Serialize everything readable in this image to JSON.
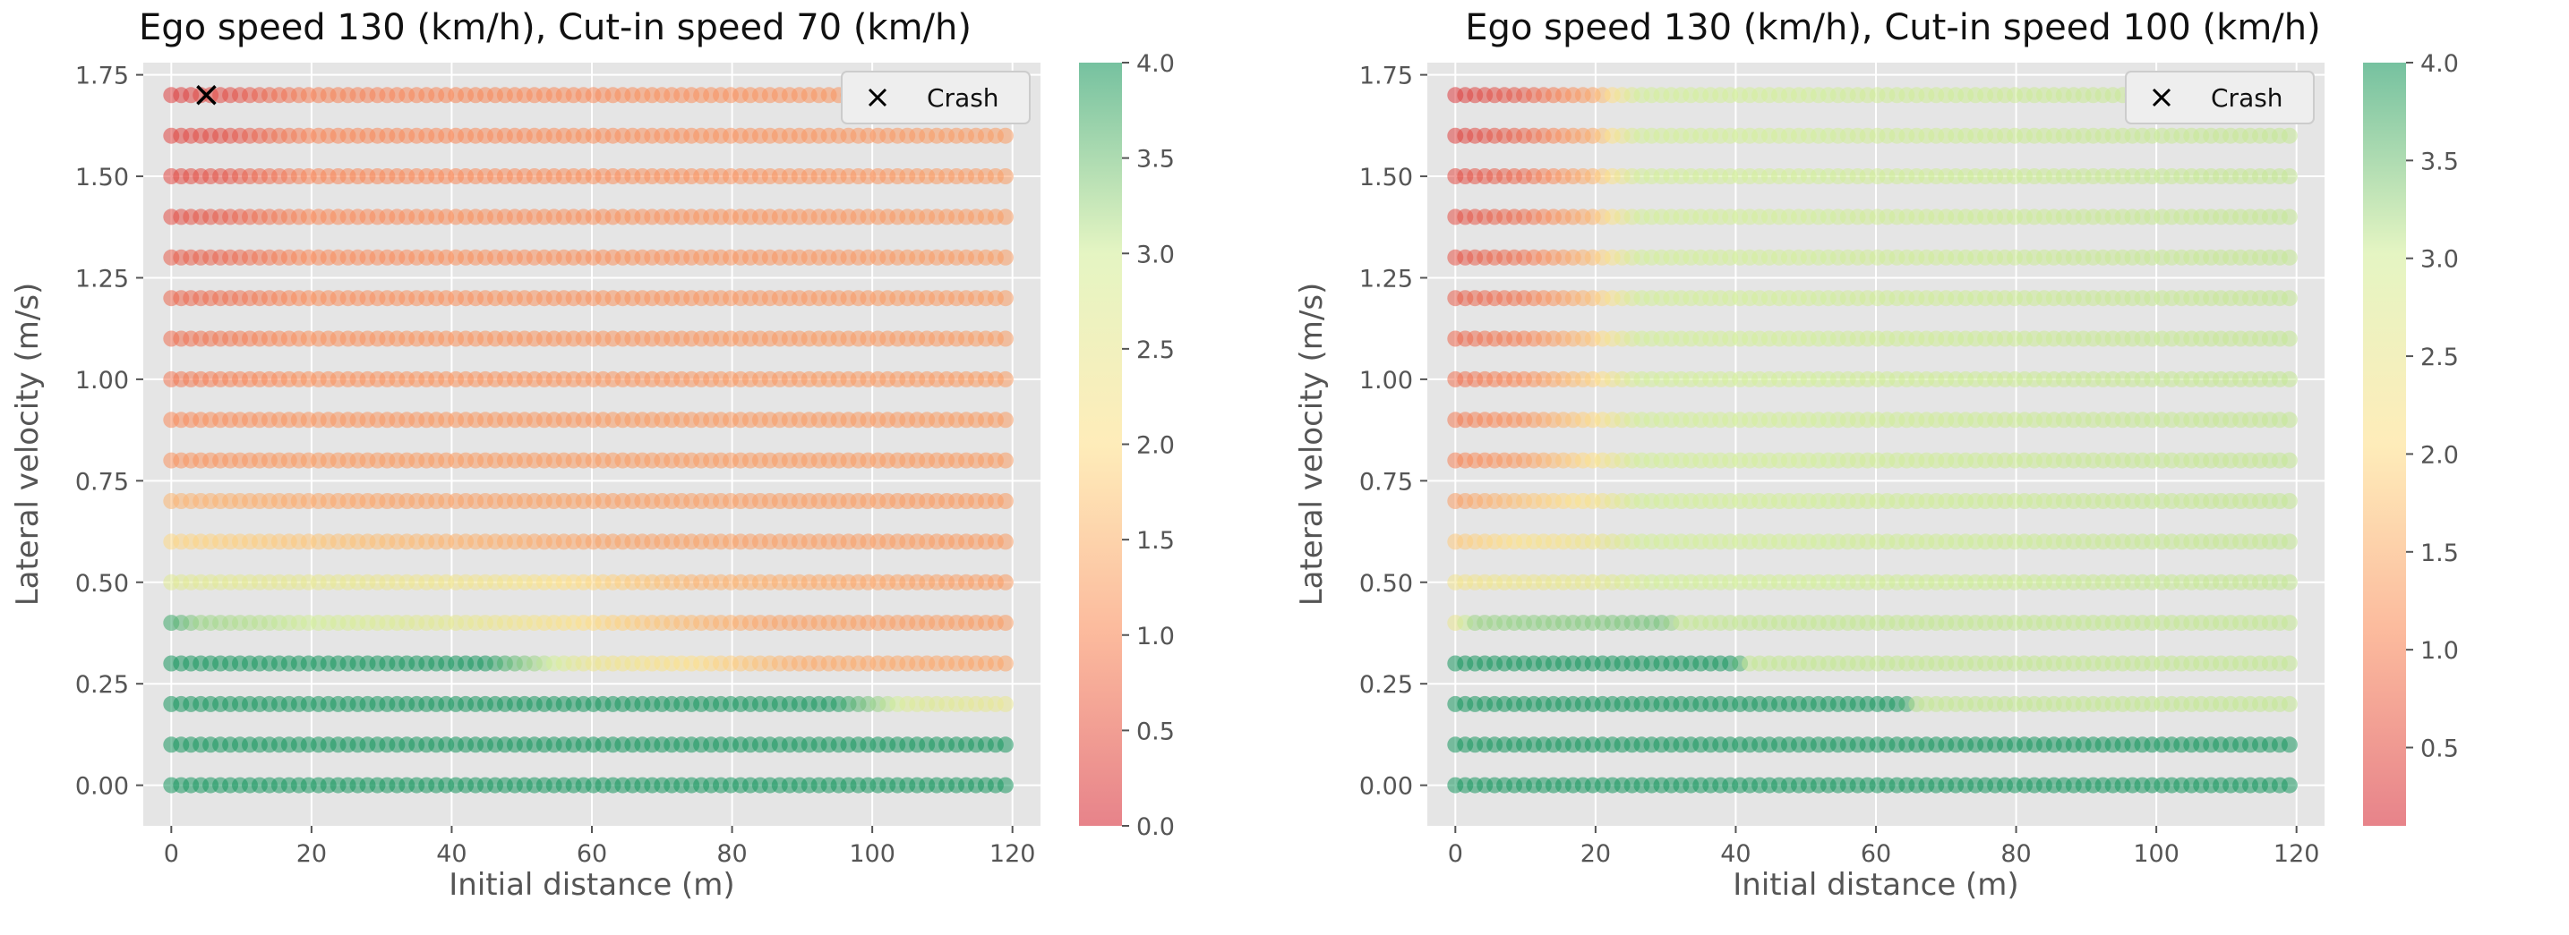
{
  "chart_data": [
    {
      "type": "scatter",
      "title": "Ego speed 130 (km/h), Cut-in speed 70 (km/h)",
      "xlabel": "Initial distance (m)",
      "ylabel": "Lateral velocity (m/s)",
      "xlim": [
        -4,
        124
      ],
      "ylim": [
        -0.1,
        1.78
      ],
      "xticks": [
        0,
        20,
        40,
        60,
        80,
        100,
        120
      ],
      "yticks": [
        "0.00",
        "0.25",
        "0.50",
        "0.75",
        "1.00",
        "1.25",
        "1.50",
        "1.75"
      ],
      "x_range": {
        "start": 0,
        "end": 119,
        "step": 1.4
      },
      "y_rows": [
        0.0,
        0.1,
        0.2,
        0.3,
        0.4,
        0.5,
        0.6,
        0.7,
        0.8,
        0.9,
        1.0,
        1.1,
        1.2,
        1.3,
        1.4,
        1.5,
        1.6,
        1.7
      ],
      "color_metric_profile": [
        {
          "y": 0.0,
          "breaks": [
            [
              0,
              4.0
            ],
            [
              119,
              4.0
            ]
          ]
        },
        {
          "y": 0.1,
          "breaks": [
            [
              0,
              4.0
            ],
            [
              119,
              4.0
            ]
          ]
        },
        {
          "y": 0.2,
          "breaks": [
            [
              0,
              4.0
            ],
            [
              95,
              4.0
            ],
            [
              105,
              2.8
            ],
            [
              119,
              2.5
            ]
          ]
        },
        {
          "y": 0.3,
          "breaks": [
            [
              0,
              4.0
            ],
            [
              45,
              4.0
            ],
            [
              60,
              2.4
            ],
            [
              75,
              2.0
            ],
            [
              90,
              1.4
            ],
            [
              119,
              1.3
            ]
          ]
        },
        {
          "y": 0.4,
          "breaks": [
            [
              0,
              3.8
            ],
            [
              4,
              3.3
            ],
            [
              20,
              3.0
            ],
            [
              40,
              2.6
            ],
            [
              65,
              1.8
            ],
            [
              85,
              1.3
            ],
            [
              119,
              1.2
            ]
          ]
        },
        {
          "y": 0.5,
          "breaks": [
            [
              0,
              2.7
            ],
            [
              25,
              2.5
            ],
            [
              50,
              2.2
            ],
            [
              75,
              1.5
            ],
            [
              119,
              1.2
            ]
          ]
        },
        {
          "y": 0.6,
          "breaks": [
            [
              0,
              1.9
            ],
            [
              30,
              1.6
            ],
            [
              60,
              1.3
            ],
            [
              119,
              1.2
            ]
          ]
        },
        {
          "y": 0.7,
          "breaks": [
            [
              0,
              1.5
            ],
            [
              30,
              1.3
            ],
            [
              119,
              1.2
            ]
          ]
        },
        {
          "y": 0.8,
          "breaks": [
            [
              0,
              1.1
            ],
            [
              20,
              1.2
            ],
            [
              119,
              1.2
            ]
          ]
        },
        {
          "y": 0.9,
          "breaks": [
            [
              0,
              1.0
            ],
            [
              20,
              1.15
            ],
            [
              119,
              1.2
            ]
          ]
        },
        {
          "y": 1.0,
          "breaks": [
            [
              0,
              0.8
            ],
            [
              8,
              0.9
            ],
            [
              20,
              1.1
            ],
            [
              119,
              1.2
            ]
          ]
        },
        {
          "y": 1.1,
          "breaks": [
            [
              0,
              0.7
            ],
            [
              8,
              0.8
            ],
            [
              20,
              1.1
            ],
            [
              119,
              1.2
            ]
          ]
        },
        {
          "y": 1.2,
          "breaks": [
            [
              0,
              0.6
            ],
            [
              8,
              0.7
            ],
            [
              20,
              1.05
            ],
            [
              119,
              1.2
            ]
          ]
        },
        {
          "y": 1.3,
          "breaks": [
            [
              0,
              0.5
            ],
            [
              8,
              0.6
            ],
            [
              20,
              1.0
            ],
            [
              119,
              1.2
            ]
          ]
        },
        {
          "y": 1.4,
          "breaks": [
            [
              0,
              0.35
            ],
            [
              8,
              0.5
            ],
            [
              20,
              1.0
            ],
            [
              119,
              1.2
            ]
          ]
        },
        {
          "y": 1.5,
          "breaks": [
            [
              0,
              0.3
            ],
            [
              8,
              0.4
            ],
            [
              20,
              0.95
            ],
            [
              119,
              1.2
            ]
          ]
        },
        {
          "y": 1.6,
          "breaks": [
            [
              0,
              0.25
            ],
            [
              8,
              0.35
            ],
            [
              20,
              0.95
            ],
            [
              119,
              1.2
            ]
          ]
        },
        {
          "y": 1.7,
          "breaks": [
            [
              0,
              0.2
            ],
            [
              8,
              0.3
            ],
            [
              20,
              0.9
            ],
            [
              119,
              1.2
            ]
          ]
        }
      ],
      "crash_points": [
        {
          "x": 5,
          "y": 1.7
        }
      ],
      "legend": {
        "label": "Crash",
        "location": "top-right"
      },
      "colorbar": {
        "min": 0.0,
        "max": 4.0,
        "ticks": [
          "0.0",
          "0.5",
          "1.0",
          "1.5",
          "2.0",
          "2.5",
          "3.0",
          "3.5",
          "4.0"
        ]
      }
    },
    {
      "type": "scatter",
      "title": "Ego speed 130 (km/h), Cut-in speed 100 (km/h)",
      "xlabel": "Initial distance (m)",
      "ylabel": "Lateral velocity (m/s)",
      "xlim": [
        -4,
        124
      ],
      "ylim": [
        -0.1,
        1.78
      ],
      "xticks": [
        0,
        20,
        40,
        60,
        80,
        100,
        120
      ],
      "yticks": [
        "0.00",
        "0.25",
        "0.50",
        "0.75",
        "1.00",
        "1.25",
        "1.50",
        "1.75"
      ],
      "x_range": {
        "start": 0,
        "end": 119,
        "step": 1.4
      },
      "y_rows": [
        0.0,
        0.1,
        0.2,
        0.3,
        0.4,
        0.5,
        0.6,
        0.7,
        0.8,
        0.9,
        1.0,
        1.1,
        1.2,
        1.3,
        1.4,
        1.5,
        1.6,
        1.7
      ],
      "color_metric_profile": [
        {
          "y": 0.0,
          "breaks": [
            [
              0,
              4.0
            ],
            [
              119,
              4.0
            ]
          ]
        },
        {
          "y": 0.1,
          "breaks": [
            [
              0,
              4.0
            ],
            [
              119,
              4.0
            ]
          ]
        },
        {
          "y": 0.2,
          "breaks": [
            [
              0,
              4.0
            ],
            [
              64,
              4.0
            ],
            [
              66,
              3.1
            ],
            [
              119,
              3.1
            ]
          ]
        },
        {
          "y": 0.3,
          "breaks": [
            [
              0,
              4.0
            ],
            [
              40,
              4.0
            ],
            [
              42,
              3.1
            ],
            [
              119,
              3.1
            ]
          ]
        },
        {
          "y": 0.4,
          "breaks": [
            [
              0,
              2.5
            ],
            [
              2,
              3.3
            ],
            [
              30,
              3.5
            ],
            [
              32,
              3.1
            ],
            [
              119,
              3.1
            ]
          ]
        },
        {
          "y": 0.5,
          "breaks": [
            [
              0,
              2.3
            ],
            [
              20,
              2.6
            ],
            [
              28,
              3.0
            ],
            [
              119,
              3.1
            ]
          ]
        },
        {
          "y": 0.6,
          "breaks": [
            [
              0,
              1.8
            ],
            [
              20,
              2.4
            ],
            [
              26,
              3.0
            ],
            [
              119,
              3.1
            ]
          ]
        },
        {
          "y": 0.7,
          "breaks": [
            [
              0,
              1.3
            ],
            [
              20,
              2.2
            ],
            [
              26,
              3.0
            ],
            [
              119,
              3.1
            ]
          ]
        },
        {
          "y": 0.8,
          "breaks": [
            [
              0,
              1.0
            ],
            [
              10,
              1.3
            ],
            [
              20,
              2.1
            ],
            [
              26,
              3.0
            ],
            [
              119,
              3.1
            ]
          ]
        },
        {
          "y": 0.9,
          "breaks": [
            [
              0,
              0.9
            ],
            [
              10,
              1.2
            ],
            [
              20,
              2.0
            ],
            [
              26,
              3.0
            ],
            [
              119,
              3.1
            ]
          ]
        },
        {
          "y": 1.0,
          "breaks": [
            [
              0,
              0.8
            ],
            [
              10,
              1.1
            ],
            [
              20,
              1.9
            ],
            [
              26,
              3.0
            ],
            [
              119,
              3.1
            ]
          ]
        },
        {
          "y": 1.1,
          "breaks": [
            [
              0,
              0.7
            ],
            [
              10,
              1.0
            ],
            [
              20,
              1.8
            ],
            [
              26,
              3.0
            ],
            [
              119,
              3.1
            ]
          ]
        },
        {
          "y": 1.2,
          "breaks": [
            [
              0,
              0.6
            ],
            [
              10,
              0.9
            ],
            [
              20,
              1.7
            ],
            [
              26,
              3.0
            ],
            [
              119,
              3.1
            ]
          ]
        },
        {
          "y": 1.3,
          "breaks": [
            [
              0,
              0.5
            ],
            [
              10,
              0.85
            ],
            [
              20,
              1.7
            ],
            [
              26,
              3.0
            ],
            [
              119,
              3.1
            ]
          ]
        },
        {
          "y": 1.4,
          "breaks": [
            [
              0,
              0.45
            ],
            [
              10,
              0.8
            ],
            [
              20,
              1.6
            ],
            [
              26,
              3.0
            ],
            [
              119,
              3.1
            ]
          ]
        },
        {
          "y": 1.5,
          "breaks": [
            [
              0,
              0.4
            ],
            [
              10,
              0.75
            ],
            [
              20,
              1.6
            ],
            [
              26,
              3.0
            ],
            [
              119,
              3.1
            ]
          ]
        },
        {
          "y": 1.6,
          "breaks": [
            [
              0,
              0.3
            ],
            [
              10,
              0.7
            ],
            [
              20,
              1.5
            ],
            [
              26,
              3.0
            ],
            [
              119,
              3.1
            ]
          ]
        },
        {
          "y": 1.7,
          "breaks": [
            [
              0,
              0.25
            ],
            [
              10,
              0.6
            ],
            [
              20,
              1.4
            ],
            [
              26,
              3.0
            ],
            [
              119,
              3.1
            ]
          ]
        }
      ],
      "crash_points": [],
      "legend": {
        "label": "Crash",
        "location": "top-right"
      },
      "colorbar": {
        "min": 0.1,
        "max": 4.0,
        "ticks": [
          "0.5",
          "1.0",
          "1.5",
          "2.0",
          "2.5",
          "3.0",
          "3.5",
          "4.0"
        ]
      }
    }
  ],
  "colors": {
    "plot_bg": "#e5e5e5",
    "grid": "#ffffff",
    "text": "#111111",
    "tick_text": "#555555",
    "cmap": [
      "#d7303c",
      "#f98b5b",
      "#fee08b",
      "#d3ee9a",
      "#1a9860"
    ]
  }
}
